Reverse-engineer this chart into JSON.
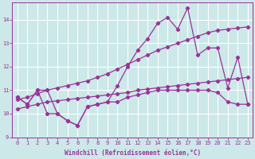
{
  "xlabel": "Windchill (Refroidissement éolien,°C)",
  "bg_color": "#cce8e8",
  "grid_color": "#ffffff",
  "line_color": "#993399",
  "xlim_min": -0.5,
  "xlim_max": 23.5,
  "ylim_min": 9.0,
  "ylim_max": 14.75,
  "xticks": [
    0,
    1,
    2,
    3,
    4,
    5,
    6,
    7,
    8,
    9,
    10,
    11,
    12,
    13,
    14,
    15,
    16,
    17,
    18,
    19,
    20,
    21,
    22,
    23
  ],
  "yticks": [
    9,
    10,
    11,
    12,
    13,
    14
  ],
  "series": [
    {
      "x": [
        0,
        1,
        2,
        3,
        4,
        5,
        6,
        7,
        8,
        9,
        10,
        11,
        12,
        13,
        14,
        15,
        16,
        17,
        18,
        19,
        20,
        21,
        22,
        23
      ],
      "y": [
        10.7,
        10.4,
        11.0,
        10.0,
        10.0,
        9.7,
        9.5,
        10.3,
        10.4,
        10.5,
        10.5,
        10.7,
        10.8,
        10.9,
        11.0,
        11.0,
        11.0,
        11.0,
        11.0,
        11.0,
        10.9,
        10.5,
        10.4,
        10.4
      ]
    },
    {
      "x": [
        0,
        1,
        2,
        3,
        4,
        5,
        6,
        7,
        8,
        9,
        10,
        11,
        12,
        13,
        14,
        15,
        16,
        17,
        18,
        19,
        20,
        21,
        22,
        23
      ],
      "y": [
        10.2,
        10.3,
        10.4,
        10.5,
        10.55,
        10.6,
        10.65,
        10.7,
        10.75,
        10.8,
        10.85,
        10.9,
        11.0,
        11.05,
        11.1,
        11.15,
        11.2,
        11.25,
        11.3,
        11.35,
        11.4,
        11.45,
        11.5,
        11.55
      ]
    },
    {
      "x": [
        0,
        1,
        2,
        3,
        4,
        5,
        6,
        7,
        8,
        9,
        10,
        11,
        12,
        13,
        14,
        15,
        16,
        17,
        18,
        19,
        20,
        21,
        22,
        23
      ],
      "y": [
        10.6,
        10.7,
        10.85,
        11.0,
        11.1,
        11.2,
        11.3,
        11.4,
        11.55,
        11.7,
        11.9,
        12.1,
        12.3,
        12.5,
        12.7,
        12.85,
        13.0,
        13.15,
        13.3,
        13.45,
        13.55,
        13.6,
        13.65,
        13.7
      ]
    },
    {
      "x": [
        0,
        1,
        2,
        3,
        4,
        5,
        6,
        7,
        8,
        9,
        10,
        11,
        12,
        13,
        14,
        15,
        16,
        17,
        18,
        19,
        20,
        21,
        22,
        23
      ],
      "y": [
        10.7,
        10.4,
        11.0,
        11.0,
        10.0,
        9.7,
        9.5,
        10.3,
        10.4,
        10.5,
        11.2,
        12.0,
        12.7,
        13.2,
        13.85,
        14.1,
        13.6,
        14.5,
        12.5,
        12.8,
        12.8,
        11.1,
        12.4,
        10.4
      ]
    }
  ]
}
